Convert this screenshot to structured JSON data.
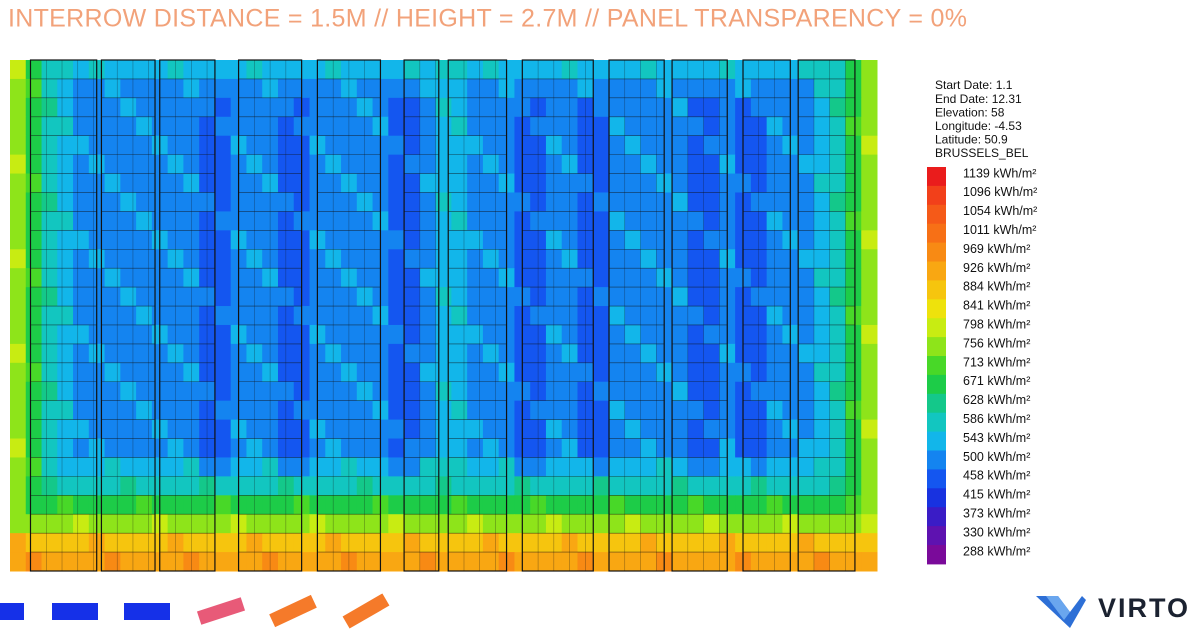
{
  "header": {
    "title": "INTERROW DISTANCE = 1.5M // HEIGHT = 2.7M // PANEL TRANSPARENCY = 0%"
  },
  "info": {
    "lines": [
      "Start Date: 1.1",
      "End Date: 12.31",
      "Elevation: 58",
      "Longitude: -4.53",
      "Latitude: 50.9",
      "BRUSSELS_BEL"
    ]
  },
  "legend": {
    "labels": [
      "1139 kWh/m²",
      "1096 kWh/m²",
      "1054 kWh/m²",
      "1011 kWh/m²",
      "969 kWh/m²",
      "926 kWh/m²",
      "884 kWh/m²",
      "841 kWh/m²",
      "798 kWh/m²",
      "756 kWh/m²",
      "713 kWh/m²",
      "671 kWh/m²",
      "628 kWh/m²",
      "586 kWh/m²",
      "543 kWh/m²",
      "500 kWh/m²",
      "458 kWh/m²",
      "415 kWh/m²",
      "373 kWh/m²",
      "330 kWh/m²",
      "288 kWh/m²"
    ],
    "colors": [
      "#ea1c1c",
      "#f2401a",
      "#f55a18",
      "#f77016",
      "#f88a14",
      "#f9a712",
      "#f6c50e",
      "#eee20c",
      "#c8ec12",
      "#8ee41a",
      "#48d828",
      "#1dcc48",
      "#14c88a",
      "#12c6c0",
      "#12b6ea",
      "#1484f0",
      "#1456f0",
      "#1832e0",
      "#3a1cc6",
      "#5e12b0",
      "#7a0a9a"
    ]
  },
  "logo": {
    "text": "VIRTO"
  }
}
